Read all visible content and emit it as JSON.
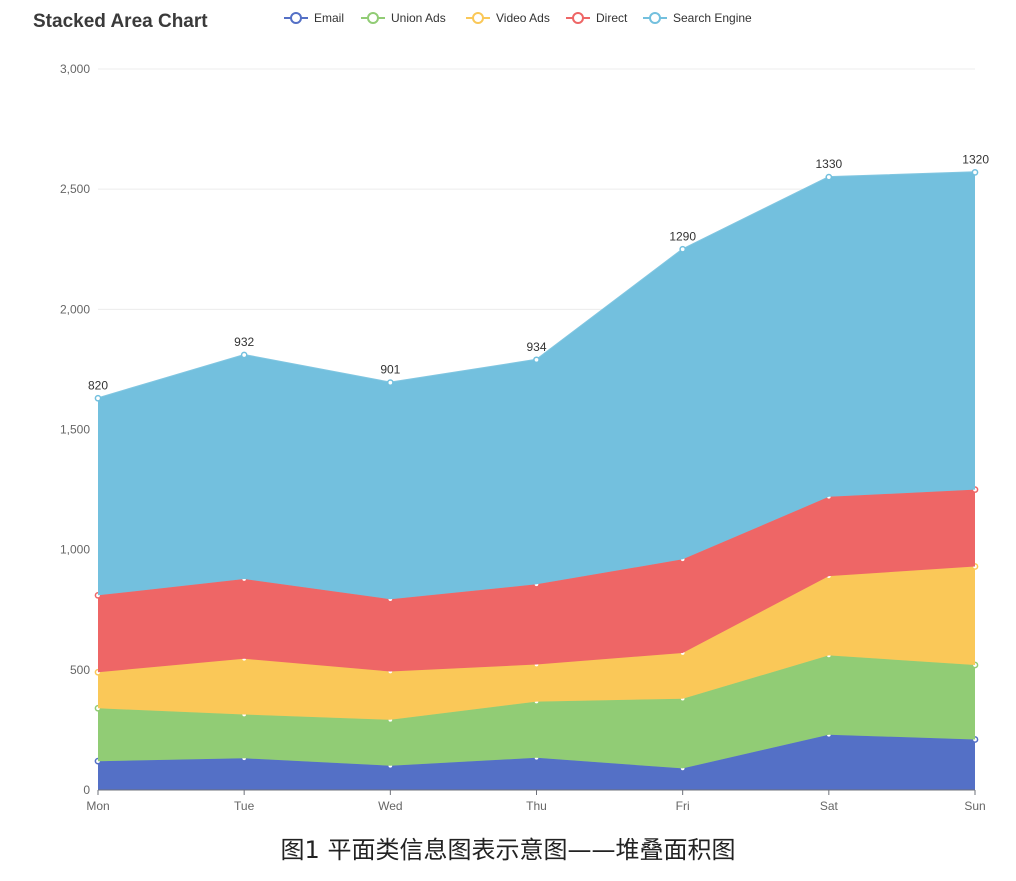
{
  "chart_data": {
    "type": "area",
    "stacked": true,
    "title": "Stacked Area Chart",
    "categories": [
      "Mon",
      "Tue",
      "Wed",
      "Thu",
      "Fri",
      "Sat",
      "Sun"
    ],
    "series": [
      {
        "name": "Email",
        "color": "#5470c6",
        "values": [
          120,
          132,
          101,
          134,
          90,
          230,
          210
        ]
      },
      {
        "name": "Union Ads",
        "color": "#91cc75",
        "values": [
          220,
          182,
          191,
          234,
          290,
          330,
          310
        ]
      },
      {
        "name": "Video Ads",
        "color": "#fac858",
        "values": [
          150,
          232,
          201,
          154,
          190,
          330,
          410
        ]
      },
      {
        "name": "Direct",
        "color": "#ee6666",
        "values": [
          320,
          332,
          301,
          334,
          390,
          330,
          320
        ]
      },
      {
        "name": "Search Engine",
        "color": "#73c0de",
        "values": [
          820,
          932,
          901,
          934,
          1290,
          1330,
          1320
        ]
      }
    ],
    "data_labels": {
      "series": "Search Engine",
      "values": [
        "820",
        "932",
        "901",
        "934",
        "1290",
        "1330",
        "1320"
      ]
    },
    "y_ticks": [
      "0",
      "500",
      "1,000",
      "1,500",
      "2,000",
      "2,500",
      "3,000"
    ],
    "ylim": [
      0,
      3000
    ],
    "legend_position": "top",
    "grid": "horizontal"
  },
  "caption": "图1  平面类信息图表示意图——堆叠面积图"
}
